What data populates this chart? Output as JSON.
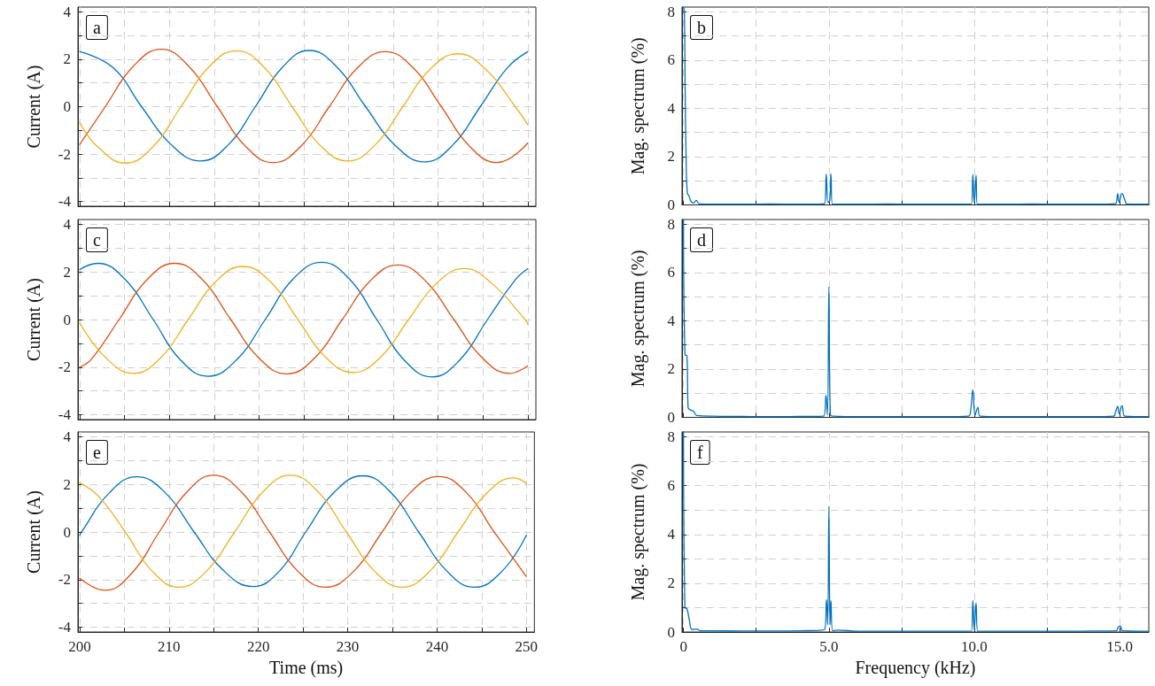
{
  "chart_data": [
    {
      "type": "line",
      "ylabel": "Current (A)",
      "annotations": [
        "a"
      ],
      "xlim": [
        199.8,
        250.9
      ],
      "ylim": [
        -4.2,
        4.2
      ],
      "xticks": [
        200,
        {
          "value": 205,
          "label": null
        },
        210,
        {
          "value": 215,
          "label": null
        },
        220,
        {
          "value": 225,
          "label": null
        },
        230,
        {
          "value": 235,
          "label": null
        },
        240,
        {
          "value": 245,
          "label": null
        },
        250
      ],
      "yticks": [
        -4,
        {
          "value": -3,
          "label": null
        },
        -2,
        {
          "value": -1,
          "label": null
        },
        0,
        {
          "value": 1,
          "label": null
        },
        2,
        {
          "value": 3,
          "label": null
        },
        4
      ],
      "grid": true,
      "tick_labels": "y",
      "series": [
        {
          "color": "#0072bd",
          "x": [
            200,
            203.7,
            206.9,
            210.2,
            213.5,
            216.6,
            219.6,
            222.6,
            225.6,
            228.7,
            231.9,
            235.2,
            238.5,
            241.6,
            244.7,
            247.7,
            250
          ],
          "values": [
            2.32,
            1.65,
            0,
            -1.6,
            -2.29,
            -1.6,
            0,
            1.65,
            2.37,
            1.67,
            0,
            -1.63,
            -2.33,
            -1.63,
            0,
            1.63,
            2.32
          ]
        },
        {
          "color": "#d95319",
          "x": [
            200,
            202.85,
            205.97,
            209.1,
            212.2,
            215.35,
            218.5,
            221.6,
            224.7,
            227.85,
            231,
            234.1,
            237.2,
            240.35,
            243.5,
            246.6,
            250
          ],
          "values": [
            -1.59,
            0,
            1.7,
            2.42,
            1.69,
            0,
            -1.67,
            -2.36,
            -1.66,
            0,
            1.64,
            2.32,
            1.64,
            0,
            -1.67,
            -2.36,
            -1.53
          ]
        },
        {
          "color": "#edb120",
          "x": [
            200,
            201.97,
            205.1,
            208.2,
            211.3,
            214.4,
            217.5,
            220.6,
            223.7,
            226.8,
            229.9,
            233,
            236.05,
            239.1,
            242.2,
            245.3,
            248.6,
            250
          ],
          "values": [
            -0.67,
            -1.68,
            -2.38,
            -1.68,
            0,
            1.67,
            2.36,
            1.65,
            0,
            -1.62,
            -2.29,
            -1.6,
            0,
            1.58,
            2.23,
            1.58,
            0,
            -0.76
          ]
        }
      ]
    },
    {
      "type": "line",
      "ylabel": "Mag. spectrum (%)",
      "annotations": [
        "b"
      ],
      "xlim": [
        -0.05,
        16
      ],
      "ylim": [
        0,
        8.2
      ],
      "xticks": [
        0,
        2.5,
        5,
        7.5,
        10,
        12.5,
        15
      ],
      "yticks": [
        0,
        {
          "value": 1,
          "label": null
        },
        2,
        {
          "value": 3,
          "label": null
        },
        4,
        {
          "value": 5,
          "label": null
        },
        6,
        {
          "value": 7,
          "label": null
        },
        8
      ],
      "grid": true,
      "tick_labels": "y",
      "series": [
        {
          "color": "#0072bd",
          "x": [
            0,
            0.03,
            0.06,
            0.09,
            0.13,
            0.19,
            0.27,
            0.35,
            0.44,
            0.55,
            1,
            2,
            3,
            4,
            4.85,
            4.91,
            4.97,
            5.03,
            5.07,
            5.12,
            6,
            7,
            8,
            9,
            9.9,
            9.95,
            10,
            10.06,
            10.1,
            11,
            12,
            13,
            14,
            14.85,
            14.93,
            14.98,
            15.08,
            15.18,
            15.25,
            16
          ],
          "values": [
            8.2,
            8,
            4.5,
            2,
            0.5,
            0.37,
            0.12,
            0.08,
            0.19,
            0.04,
            0.03,
            0.03,
            0.04,
            0.03,
            0.05,
            1.28,
            0.1,
            0.2,
            1.29,
            0.03,
            0.03,
            0.04,
            0.03,
            0.03,
            0.03,
            1.26,
            0.1,
            1.23,
            0.03,
            0.03,
            0.04,
            0.03,
            0.03,
            0.05,
            0.46,
            0.12,
            0.47,
            0.19,
            0.03,
            0.03
          ]
        }
      ]
    },
    {
      "type": "line",
      "ylabel": "Current (A)",
      "annotations": [
        "c"
      ],
      "xlim": [
        199.8,
        250.9
      ],
      "ylim": [
        -4.2,
        4.2
      ],
      "xticks": [
        200,
        {
          "value": 205,
          "label": null
        },
        210,
        {
          "value": 215,
          "label": null
        },
        220,
        {
          "value": 225,
          "label": null
        },
        230,
        {
          "value": 235,
          "label": null
        },
        240,
        {
          "value": 245,
          "label": null
        },
        250
      ],
      "yticks": [
        -4,
        {
          "value": -3,
          "label": null
        },
        -2,
        {
          "value": -1,
          "label": null
        },
        0,
        {
          "value": 1,
          "label": null
        },
        2,
        {
          "value": 3,
          "label": null
        },
        4
      ],
      "grid": true,
      "tick_labels": "y",
      "series": [
        {
          "color": "#0072bd",
          "x": [
            200,
            202,
            205.1,
            208.2,
            211.2,
            214.3,
            217.5,
            220.7,
            223.8,
            227,
            230.1,
            233.15,
            236.2,
            239.3,
            242.4,
            245.5,
            248.6,
            250
          ],
          "values": [
            2.1,
            2.36,
            1.67,
            0,
            -1.68,
            -2.38,
            -1.69,
            0,
            1.7,
            2.4,
            1.7,
            0,
            -1.7,
            -2.41,
            -1.7,
            0,
            1.67,
            2.14
          ]
        },
        {
          "color": "#d95319",
          "x": [
            200,
            201.3,
            204.4,
            207.5,
            210.6,
            213.7,
            216.85,
            220,
            223.1,
            226.2,
            229.3,
            232.4,
            235.5,
            238.6,
            241.75,
            244.9,
            248,
            250
          ],
          "values": [
            -2,
            -1.67,
            0,
            1.67,
            2.36,
            1.67,
            0,
            -1.62,
            -2.28,
            -1.62,
            0,
            1.62,
            2.29,
            1.62,
            0,
            -1.6,
            -2.26,
            -1.94
          ]
        },
        {
          "color": "#edb120",
          "x": [
            200,
            202.9,
            206,
            209.05,
            212.1,
            215.15,
            218.2,
            221.3,
            224.35,
            227.4,
            230.5,
            233.6,
            236.7,
            239.8,
            242.9,
            246,
            249.7,
            250
          ],
          "values": [
            -0.14,
            -1.6,
            -2.26,
            -1.6,
            0,
            1.58,
            2.23,
            1.58,
            0,
            -1.57,
            -2.22,
            -1.57,
            0,
            1.51,
            2.14,
            1.51,
            0,
            -0.2
          ]
        }
      ]
    },
    {
      "type": "line",
      "ylabel": "Mag. spectrum (%)",
      "annotations": [
        "d"
      ],
      "xlim": [
        -0.05,
        16
      ],
      "ylim": [
        0,
        8.2
      ],
      "xticks": [
        0,
        2.5,
        5,
        7.5,
        10,
        12.5,
        15
      ],
      "yticks": [
        0,
        {
          "value": 1,
          "label": null
        },
        2,
        {
          "value": 3,
          "label": null
        },
        4,
        {
          "value": 5,
          "label": null
        },
        6,
        {
          "value": 7,
          "label": null
        },
        8
      ],
      "grid": true,
      "tick_labels": "y",
      "series": [
        {
          "color": "#0072bd",
          "x": [
            0,
            0.05,
            0.12,
            0.16,
            0.25,
            0.35,
            0.45,
            1,
            2,
            3,
            4,
            4.82,
            4.9,
            4.95,
            5,
            5.05,
            5.15,
            6,
            7,
            8,
            9,
            9.8,
            9.88,
            9.95,
            10.03,
            10.12,
            10.2,
            11,
            12,
            13,
            14,
            14.8,
            14.85,
            14.93,
            14.98,
            15.08,
            15.18,
            16
          ],
          "values": [
            8.2,
            2.6,
            2.55,
            0.4,
            0.3,
            0.25,
            0.08,
            0.05,
            0.04,
            0.03,
            0.04,
            0.05,
            0.91,
            0.1,
            5.41,
            0.1,
            0.05,
            0.03,
            0.03,
            0.03,
            0.03,
            0.05,
            0.35,
            1.14,
            0.1,
            0.41,
            0.05,
            0.03,
            0.03,
            0.03,
            0.03,
            0.05,
            0.2,
            0.45,
            0.15,
            0.48,
            0.05,
            0.03
          ]
        }
      ]
    },
    {
      "type": "line",
      "xlabel": "Time (ms)",
      "ylabel": "Current (A)",
      "annotations": [
        "e"
      ],
      "xlim": [
        199.8,
        250.9
      ],
      "ylim": [
        -4.2,
        4.2
      ],
      "xticks": [
        200,
        {
          "value": 205,
          "label": null
        },
        210,
        {
          "value": 215,
          "label": null
        },
        220,
        {
          "value": 225,
          "label": null
        },
        230,
        {
          "value": 235,
          "label": null
        },
        240,
        {
          "value": 245,
          "label": null
        },
        250
      ],
      "yticks": [
        -4,
        {
          "value": -3,
          "label": null
        },
        -2,
        {
          "value": -1,
          "label": null
        },
        0,
        {
          "value": 1,
          "label": null
        },
        2,
        {
          "value": 3,
          "label": null
        },
        4
      ],
      "grid": true,
      "series": [
        {
          "color": "#0072bd",
          "x": [
            200,
            200.2,
            203.3,
            206.4,
            209.6,
            212.8,
            216.1,
            219.4,
            222.4,
            225.3,
            228.5,
            231.7,
            234.8,
            237.95,
            241.1,
            244.2,
            247.3,
            250
          ],
          "values": [
            -0.14,
            0,
            1.64,
            2.32,
            1.64,
            0,
            -1.62,
            -2.29,
            -1.62,
            0,
            1.67,
            2.36,
            1.67,
            0,
            -1.64,
            -2.32,
            -1.64,
            -0.14
          ]
        },
        {
          "color": "#d95319",
          "x": [
            200,
            202.8,
            205.9,
            208.9,
            212,
            215,
            218.1,
            221.25,
            224.4,
            227.5,
            230.7,
            233.85,
            237,
            240.2,
            243.3,
            246.4,
            250
          ],
          "values": [
            -1.94,
            -2.45,
            -1.7,
            0,
            1.68,
            2.38,
            1.68,
            0,
            -1.64,
            -2.32,
            -1.64,
            0,
            1.65,
            2.33,
            1.65,
            0,
            -1.87
          ]
        },
        {
          "color": "#edb120",
          "x": [
            200,
            202.1,
            205.1,
            208.1,
            211.1,
            214.2,
            217.35,
            220.5,
            223.6,
            226.7,
            229.85,
            233,
            236.1,
            239.2,
            242.35,
            245.5,
            248.6,
            250
          ],
          "values": [
            2.06,
            1.5,
            0,
            -1.64,
            -2.32,
            -1.64,
            0,
            1.68,
            2.38,
            1.68,
            0,
            -1.64,
            -2.32,
            -1.64,
            0,
            1.6,
            2.27,
            2.04
          ]
        }
      ]
    },
    {
      "type": "line",
      "xlabel": "Frequency (kHz)",
      "ylabel": "Mag. spectrum (%)",
      "annotations": [
        "f"
      ],
      "xlim": [
        -0.05,
        16
      ],
      "ylim": [
        0,
        8.2
      ],
      "xticks": [
        0,
        {
          "value": 2.5,
          "label": null
        },
        {
          "value": 5,
          "label": "5.0"
        },
        {
          "value": 7.5,
          "label": null
        },
        {
          "value": 10,
          "label": "10.0"
        },
        {
          "value": 12.5,
          "label": null
        },
        {
          "value": 15,
          "label": "15.0"
        }
      ],
      "yticks": [
        0,
        {
          "value": 1,
          "label": null
        },
        2,
        {
          "value": 3,
          "label": null
        },
        4,
        {
          "value": 5,
          "label": null
        },
        6,
        {
          "value": 7,
          "label": null
        },
        8
      ],
      "grid": true,
      "series": [
        {
          "color": "#0072bd",
          "x": [
            0,
            0.05,
            0.12,
            0.2,
            0.3,
            0.45,
            0.6,
            1,
            2,
            3,
            4,
            4.85,
            4.92,
            4.96,
            5,
            5.04,
            5.07,
            5.13,
            5.3,
            6,
            7,
            8,
            9,
            9.9,
            9.95,
            10,
            10.06,
            10.12,
            11,
            12,
            13,
            14,
            14.88,
            14.95,
            15.02,
            15.1,
            16
          ],
          "values": [
            8.2,
            1,
            0.95,
            0.5,
            0.1,
            0.12,
            0.05,
            0.05,
            0.04,
            0.04,
            0.05,
            0.1,
            1.33,
            0.3,
            5.15,
            0.3,
            1.29,
            0.05,
            0.08,
            0.03,
            0.03,
            0.03,
            0.03,
            0.03,
            1.29,
            0.1,
            1.19,
            0.03,
            0.03,
            0.03,
            0.03,
            0.04,
            0.05,
            0.2,
            0.25,
            0.05,
            0.03
          ]
        }
      ]
    }
  ]
}
